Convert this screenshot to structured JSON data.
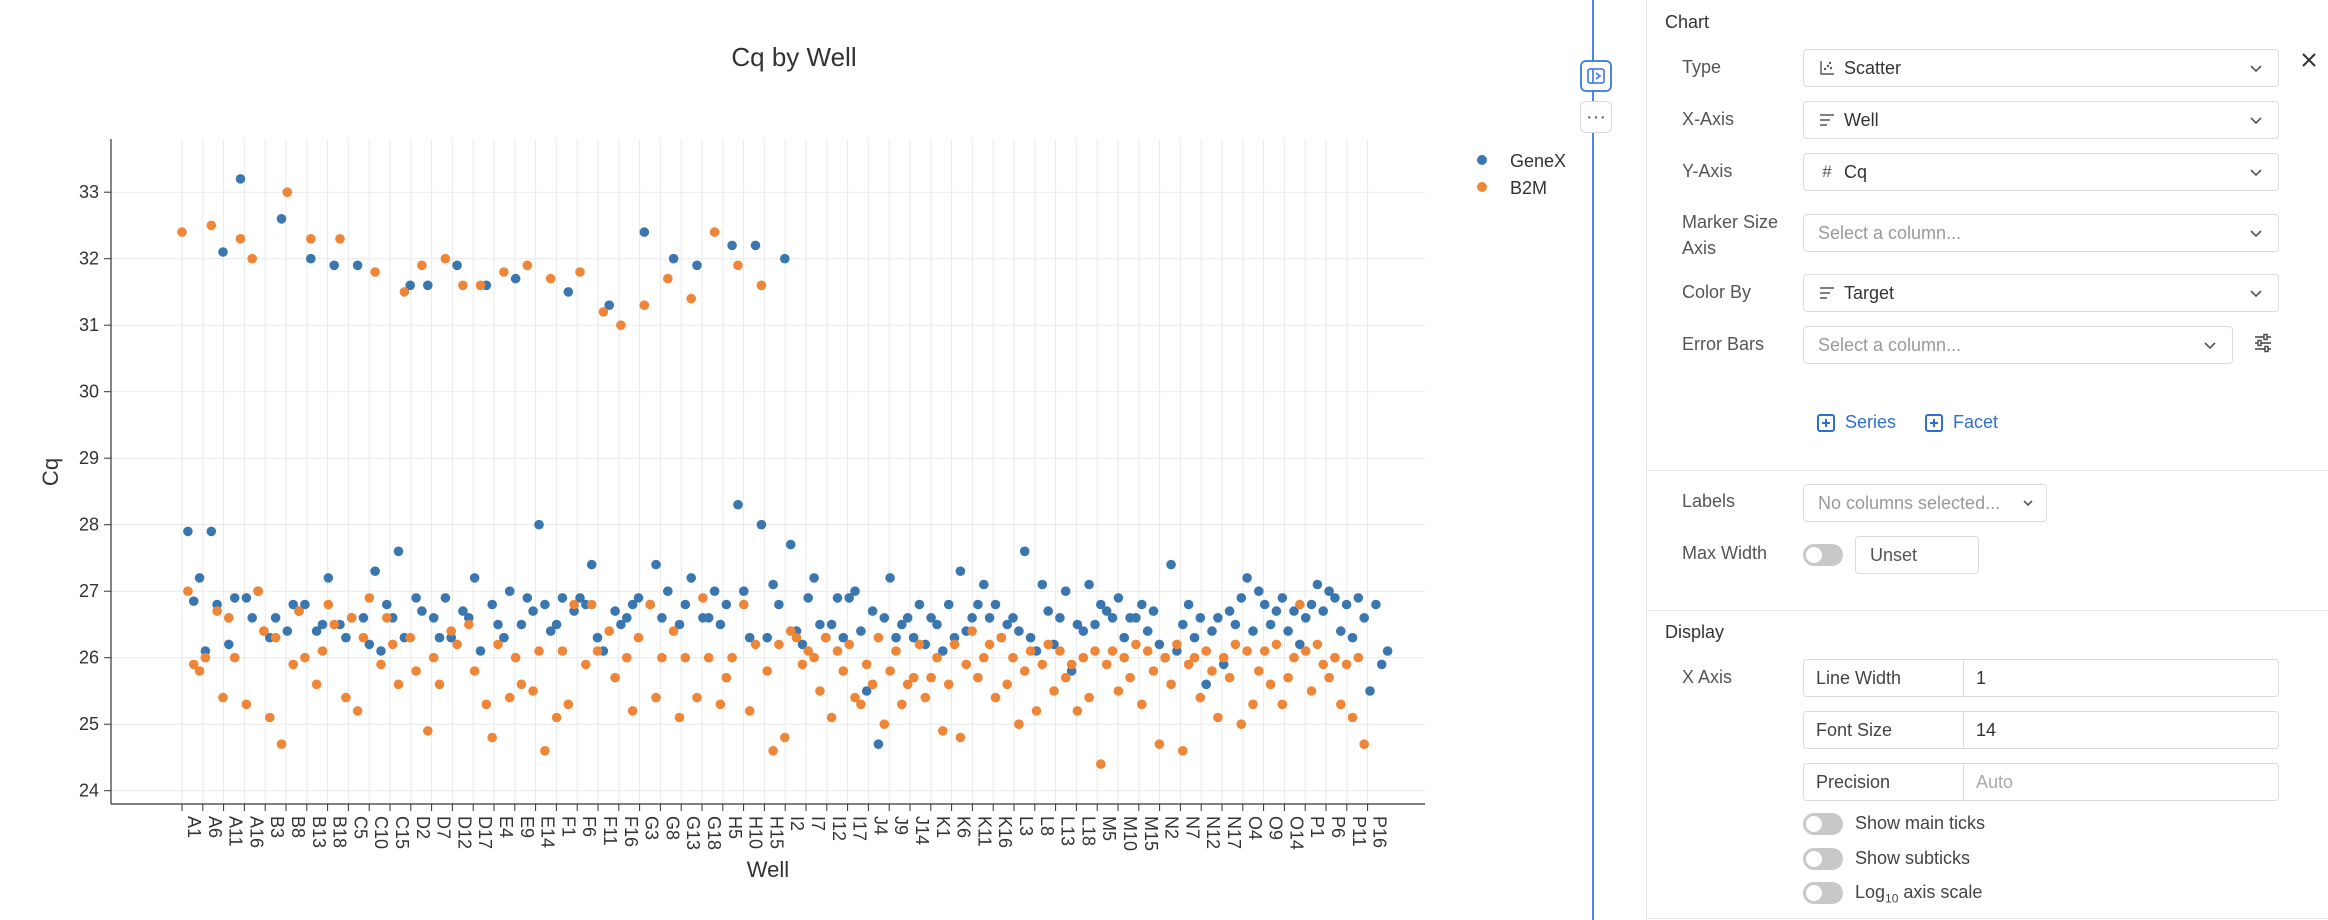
{
  "chart_data": {
    "type": "scatter",
    "title": "Cq by Well",
    "xlabel": "Well",
    "ylabel": "Cq",
    "ylim": [
      23.8,
      33.8
    ],
    "yticks": [
      24,
      25,
      26,
      27,
      28,
      29,
      30,
      31,
      32,
      33
    ],
    "x_tick_labels": [
      "A1",
      "A6",
      "A11",
      "A16",
      "B3",
      "B8",
      "B13",
      "B18",
      "C5",
      "C10",
      "C15",
      "D2",
      "D7",
      "D12",
      "D17",
      "E4",
      "E9",
      "E14",
      "F1",
      "F6",
      "F11",
      "F16",
      "G3",
      "G8",
      "G13",
      "G18",
      "H5",
      "H10",
      "H15",
      "I2",
      "I7",
      "I12",
      "I17",
      "J4",
      "J9",
      "J14",
      "K1",
      "K6",
      "K11",
      "K16",
      "L3",
      "L8",
      "L13",
      "L18",
      "M5",
      "M10",
      "M15",
      "N2",
      "N7",
      "N12",
      "N17",
      "O4",
      "O9",
      "O14",
      "P1",
      "P6",
      "P11",
      "P16"
    ],
    "grid": true,
    "legend_position": "top-right",
    "series": [
      {
        "name": "GeneX",
        "color": "#3a76af",
        "values": [
          null,
          27.9,
          26.85,
          27.2,
          26.1,
          27.9,
          26.8,
          32.1,
          26.2,
          26.9,
          33.2,
          26.9,
          26.6,
          27.0,
          26.4,
          26.3,
          26.6,
          32.6,
          26.4,
          26.8,
          26.7,
          26.8,
          32.0,
          26.4,
          26.5,
          27.2,
          31.9,
          26.5,
          26.3,
          26.6,
          31.9,
          26.6,
          26.2,
          27.3,
          26.1,
          26.8,
          26.6,
          27.6,
          26.3,
          31.6,
          26.9,
          26.7,
          31.6,
          26.6,
          26.3,
          26.9,
          26.3,
          31.9,
          26.7,
          26.6,
          27.2,
          26.1,
          31.6,
          26.8,
          26.5,
          26.3,
          27.0,
          31.7,
          26.5,
          26.9,
          26.7,
          28.0,
          26.8,
          26.4,
          26.5,
          26.9,
          31.5,
          26.7,
          26.9,
          26.8,
          27.4,
          26.3,
          26.1,
          31.3,
          26.7,
          26.5,
          26.6,
          26.8,
          26.9,
          32.4,
          26.8,
          27.4,
          26.6,
          27.0,
          32.0,
          26.5,
          26.8,
          27.2,
          31.9,
          26.6,
          26.6,
          27.0,
          26.5,
          26.8,
          32.2,
          28.3,
          27.0,
          26.3,
          32.2,
          28.0,
          26.3,
          27.1,
          26.8,
          32.0,
          27.7,
          26.4,
          26.2,
          26.9,
          27.2,
          26.5,
          26.3,
          26.5,
          26.9,
          26.3,
          26.9,
          27.0,
          26.4,
          25.5,
          26.7,
          24.7,
          26.6,
          27.2,
          26.3,
          26.5,
          26.6,
          26.3,
          26.8,
          26.2,
          26.6,
          26.5,
          26.1,
          26.8,
          26.3,
          27.3,
          26.4,
          26.6,
          26.8,
          27.1,
          26.6,
          26.8,
          26.3,
          26.5,
          26.6,
          26.4,
          27.6,
          26.3,
          26.1,
          27.1,
          26.7,
          26.2,
          26.6,
          27.0,
          25.8,
          26.5,
          26.4,
          27.1,
          26.5,
          26.8,
          26.7,
          26.6,
          26.9,
          26.3,
          26.6,
          26.6,
          26.8,
          26.4,
          26.7,
          26.2,
          26.0,
          27.4,
          26.1,
          26.5,
          26.8,
          26.3,
          26.6,
          25.6,
          26.4,
          26.6,
          25.9,
          26.7,
          26.5,
          26.9,
          27.2,
          26.4,
          27.0,
          26.8,
          26.5,
          26.7,
          26.9,
          26.4,
          26.7,
          26.2,
          26.6,
          26.8,
          27.1,
          26.7,
          27.0,
          26.9,
          26.4,
          26.8,
          26.3,
          26.9,
          26.6,
          25.5,
          26.8,
          25.9,
          26.1
        ]
      },
      {
        "name": "B2M",
        "color": "#ef8536",
        "values": [
          32.4,
          27.0,
          25.9,
          25.8,
          26.0,
          32.5,
          26.7,
          25.4,
          26.6,
          26.0,
          32.3,
          25.3,
          32.0,
          27.0,
          26.4,
          25.1,
          26.3,
          24.7,
          33.0,
          25.9,
          26.7,
          26.0,
          32.3,
          25.6,
          26.1,
          26.8,
          26.5,
          32.3,
          25.4,
          26.6,
          25.2,
          26.3,
          26.9,
          31.8,
          25.9,
          26.6,
          26.2,
          25.6,
          31.5,
          26.3,
          25.8,
          31.9,
          24.9,
          26.0,
          25.6,
          32.0,
          26.4,
          26.2,
          31.6,
          26.5,
          25.8,
          31.6,
          25.3,
          24.8,
          26.2,
          31.8,
          25.4,
          26.0,
          25.6,
          31.9,
          25.5,
          26.1,
          24.6,
          31.7,
          25.1,
          26.1,
          25.3,
          26.8,
          31.8,
          25.9,
          26.8,
          26.1,
          31.2,
          26.4,
          25.7,
          31.0,
          26.0,
          25.2,
          26.3,
          31.3,
          26.8,
          25.4,
          26.0,
          31.7,
          26.4,
          25.1,
          26.0,
          31.4,
          25.4,
          26.9,
          26.0,
          32.4,
          25.3,
          25.7,
          26.0,
          31.9,
          26.8,
          25.2,
          26.2,
          31.6,
          25.8,
          24.6,
          26.2,
          24.8,
          26.4,
          26.3,
          25.9,
          26.1,
          26.0,
          25.5,
          26.3,
          25.1,
          26.1,
          25.8,
          26.2,
          25.4,
          25.3,
          25.9,
          25.6,
          26.3,
          25.0,
          25.8,
          26.1,
          25.3,
          25.6,
          25.7,
          26.2,
          25.4,
          25.7,
          26.0,
          24.9,
          25.6,
          26.2,
          24.8,
          25.9,
          26.4,
          25.7,
          26.0,
          26.2,
          25.4,
          26.3,
          25.6,
          26.0,
          25.0,
          25.8,
          26.1,
          25.2,
          25.9,
          26.2,
          25.5,
          26.1,
          25.7,
          25.9,
          25.2,
          26.0,
          25.4,
          26.1,
          24.4,
          25.9,
          26.1,
          25.5,
          26.0,
          25.7,
          26.2,
          25.3,
          26.1,
          25.8,
          24.7,
          26.0,
          25.6,
          26.2,
          24.6,
          25.9,
          26.0,
          25.4,
          26.1,
          25.8,
          25.1,
          26.0,
          25.7,
          26.2,
          25.0,
          26.1,
          25.3,
          25.8,
          26.1,
          25.6,
          26.2,
          25.3,
          25.7,
          26.0,
          26.8,
          26.1,
          25.5,
          26.2,
          25.9,
          25.7,
          26.0,
          25.3,
          25.9,
          25.1,
          26.0,
          24.7
        ]
      }
    ]
  },
  "controls": {
    "toggle_panel_icon": "panel-toggle-icon",
    "more_label": "···"
  },
  "panel": {
    "chart_section_title": "Chart",
    "type_label": "Type",
    "type_value": "Scatter",
    "xaxis_label": "X-Axis",
    "xaxis_value": "Well",
    "yaxis_label": "Y-Axis",
    "yaxis_value": "Cq",
    "marker_size_label_1": "Marker Size",
    "marker_size_label_2": "Axis",
    "marker_size_placeholder": "Select a column...",
    "color_by_label": "Color By",
    "color_by_value": "Target",
    "error_bars_label": "Error Bars",
    "error_bars_placeholder": "Select a column...",
    "series_button": "Series",
    "facet_button": "Facet",
    "labels_label": "Labels",
    "labels_placeholder": "No columns selected...",
    "max_width_label": "Max Width",
    "max_width_value": "Unset",
    "display_section_title": "Display",
    "x_axis_label": "X Axis",
    "line_width_key": "Line Width",
    "line_width_value": "1",
    "font_size_key": "Font Size",
    "font_size_value": "14",
    "precision_key": "Precision",
    "precision_placeholder": "Auto",
    "show_main_ticks": "Show main ticks",
    "show_subticks": "Show subticks",
    "log_axis_prefix": "Log",
    "log_axis_sub": "10",
    "log_axis_suffix": " axis scale"
  }
}
